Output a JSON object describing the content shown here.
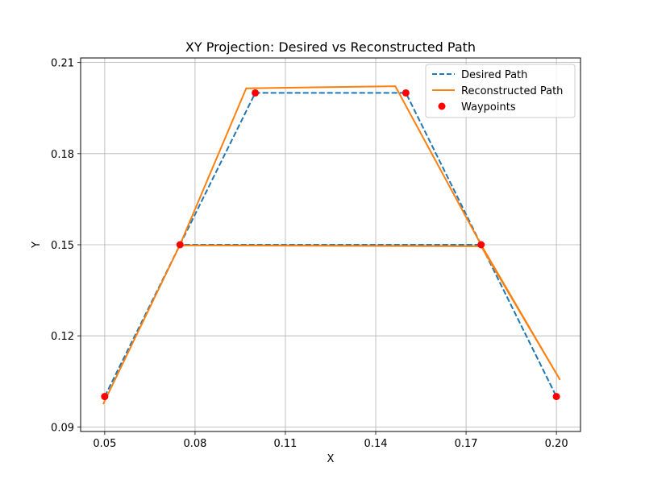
{
  "chart_data": {
    "type": "line",
    "title": "XY Projection: Desired vs Reconstructed Path",
    "xlabel": "X",
    "ylabel": "Y",
    "xlim": [
      0.042,
      0.208
    ],
    "ylim": [
      0.0885,
      0.2115
    ],
    "xticks": [
      0.05,
      0.08,
      0.11,
      0.14,
      0.17,
      0.2
    ],
    "xtick_labels": [
      "0.05",
      "0.08",
      "0.11",
      "0.14",
      "0.17",
      "0.20"
    ],
    "yticks": [
      0.09,
      0.12,
      0.15,
      0.18,
      0.21
    ],
    "ytick_labels": [
      "0.09",
      "0.12",
      "0.15",
      "0.18",
      "0.21"
    ],
    "grid": true,
    "legend_position": "top-right",
    "series": [
      {
        "name": "Desired Path",
        "style": "dashed",
        "color": "#1f77b4",
        "x": [
          0.05,
          0.075,
          0.1,
          0.15,
          0.175,
          0.2,
          0.175,
          0.075
        ],
        "y": [
          0.1,
          0.15,
          0.2,
          0.2,
          0.15,
          0.1,
          0.15,
          0.15
        ]
      },
      {
        "name": "Reconstructed Path",
        "style": "solid",
        "color": "#ff7f0e",
        "x": [
          0.0495,
          0.075,
          0.097,
          0.1465,
          0.175,
          0.2012,
          0.175,
          0.075
        ],
        "y": [
          0.0975,
          0.15,
          0.2015,
          0.2022,
          0.15,
          0.1055,
          0.1495,
          0.1498
        ]
      },
      {
        "name": "Waypoints",
        "style": "scatter",
        "color": "#ff0000",
        "x": [
          0.05,
          0.075,
          0.1,
          0.15,
          0.175,
          0.2
        ],
        "y": [
          0.1,
          0.15,
          0.2,
          0.2,
          0.15,
          0.1
        ]
      }
    ]
  }
}
